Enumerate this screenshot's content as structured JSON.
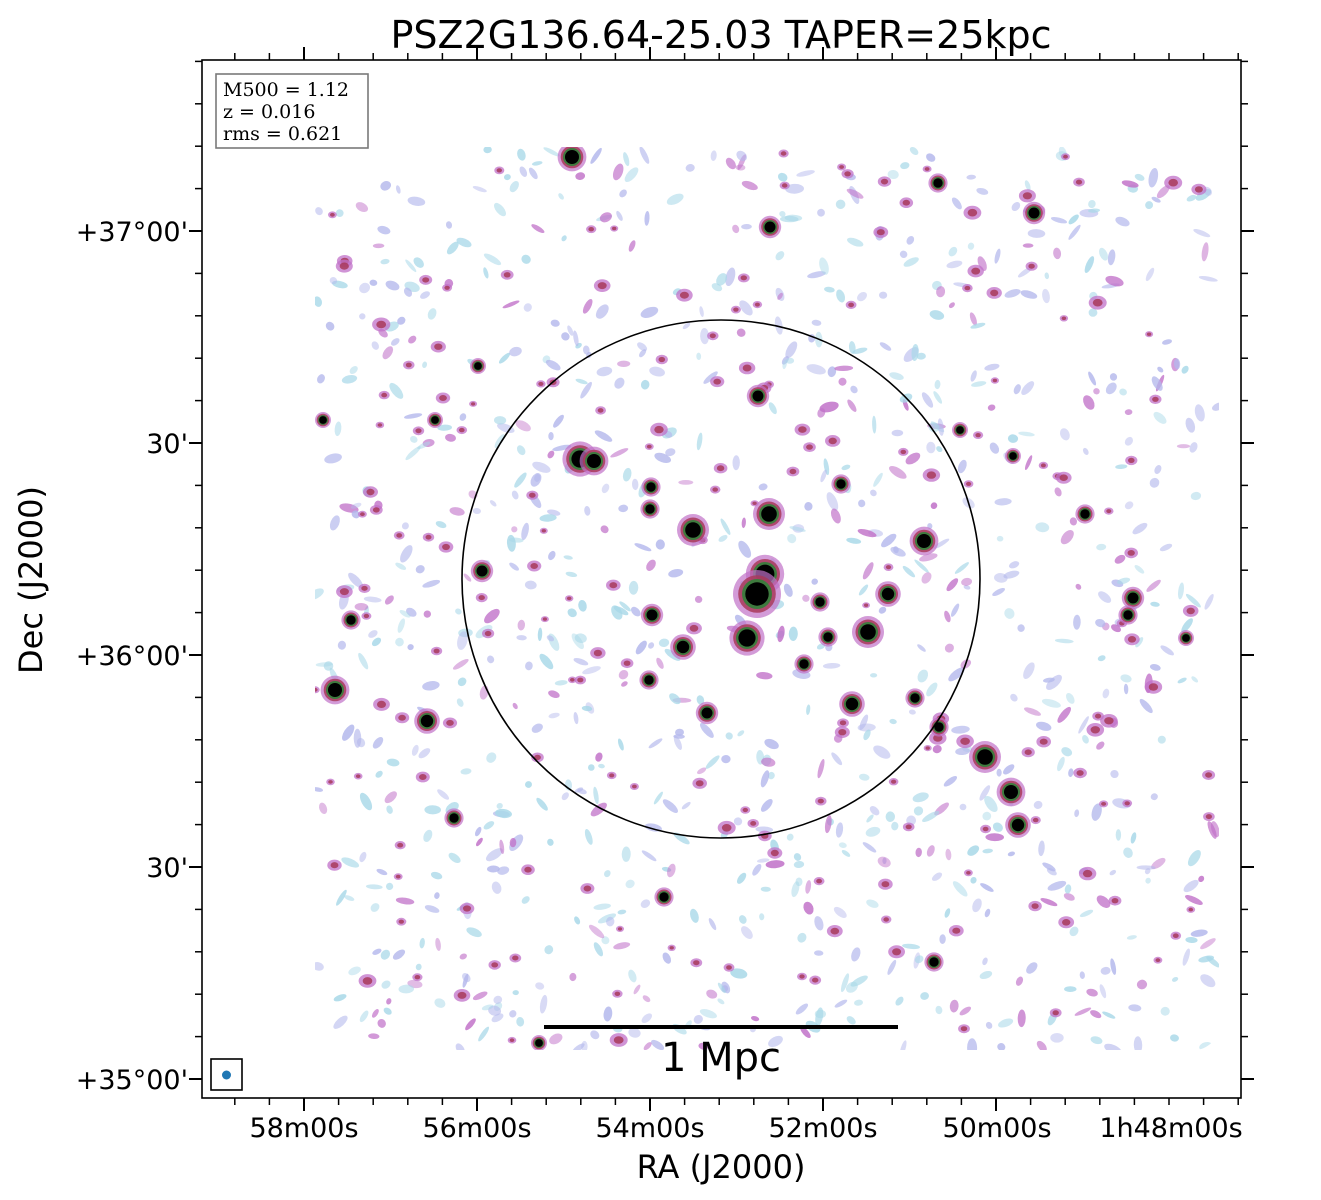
{
  "chart_data": {
    "type": "image",
    "title": "PSZ2G136.64-25.03 TAPER=25kpc",
    "xlabel": "RA (J2000)",
    "ylabel": "Dec (J2000)",
    "x_ticks": [
      "58m00s",
      "56m00s",
      "54m00s",
      "52m00s",
      "50m00s",
      "1h48m00s"
    ],
    "y_ticks": [
      "+37°00'",
      "30'",
      "+36°00'",
      "30'",
      "+35°00'"
    ],
    "info_box": {
      "line1": "M500 = 1.12",
      "line2": "z = 0.016",
      "line3": "rms = 0.621"
    },
    "scale_bar_label": "1 Mpc",
    "colors": {
      "noise_low": "#a8d8e8",
      "noise_mid": "#b4b8ec",
      "emission_purple": "#c070c8",
      "emission_red": "#a83a5a",
      "emission_green": "#3e7a3e",
      "source_core": "#000000",
      "beam": "#1f77b4"
    }
  }
}
